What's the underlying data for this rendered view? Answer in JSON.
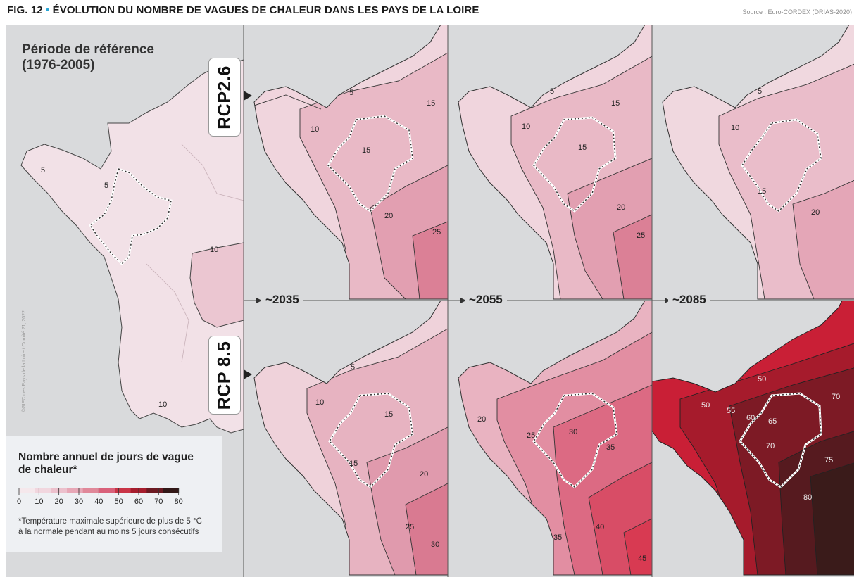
{
  "figure": {
    "title_prefix": "FIG. 12",
    "title_text": "ÉVOLUTION DU NOMBRE DE VAGUES DE CHALEUR DANS LES PAYS DE LA LOIRE",
    "source": "Source : Euro-CORDEX (DRIAS-2020)",
    "credit": "©GIEC des Pays de la Loire / Comité 21, 2022"
  },
  "reference": {
    "title_line1": "Période de référence",
    "title_line2": "(1976-2005)",
    "contour_labels": [
      "5",
      "5",
      "10",
      "10"
    ]
  },
  "scenarios": [
    {
      "id": "rcp26",
      "label": "RCP2.6"
    },
    {
      "id": "rcp85",
      "label": "RCP 8.5"
    }
  ],
  "periods": [
    "~2035",
    "~2055",
    "~2085"
  ],
  "panels": {
    "rcp26_2035": {
      "labels": [
        "5",
        "10",
        "15",
        "15",
        "20",
        "25"
      ]
    },
    "rcp26_2055": {
      "labels": [
        "5",
        "10",
        "15",
        "15",
        "20",
        "25"
      ]
    },
    "rcp26_2085": {
      "labels": [
        "5",
        "10",
        "15",
        "20"
      ]
    },
    "rcp85_2035": {
      "labels": [
        "5",
        "10",
        "15",
        "15",
        "20",
        "25",
        "30"
      ]
    },
    "rcp85_2055": {
      "labels": [
        "20",
        "25",
        "30",
        "35",
        "35",
        "40",
        "45"
      ]
    },
    "rcp85_2085": {
      "labels": [
        "50",
        "50",
        "55",
        "60",
        "65",
        "70",
        "70",
        "75",
        "80"
      ]
    }
  },
  "legend": {
    "title_line1": "Nombre annuel de jours de vague",
    "title_line2": "de chaleur*",
    "ticks": [
      "0",
      "10",
      "20",
      "30",
      "40",
      "50",
      "60",
      "70",
      "80"
    ],
    "colors": [
      "#f5e8ec",
      "#f1d6de",
      "#ecc0cc",
      "#e7a7b6",
      "#e08899",
      "#d9617a",
      "#c93446",
      "#a61d2d",
      "#6c1a22",
      "#321817"
    ],
    "note_line1": "*Température maximale supérieure de plus de 5 °C",
    "note_line2": "à la normale pendant au moins 5 jours consécutifs"
  }
}
